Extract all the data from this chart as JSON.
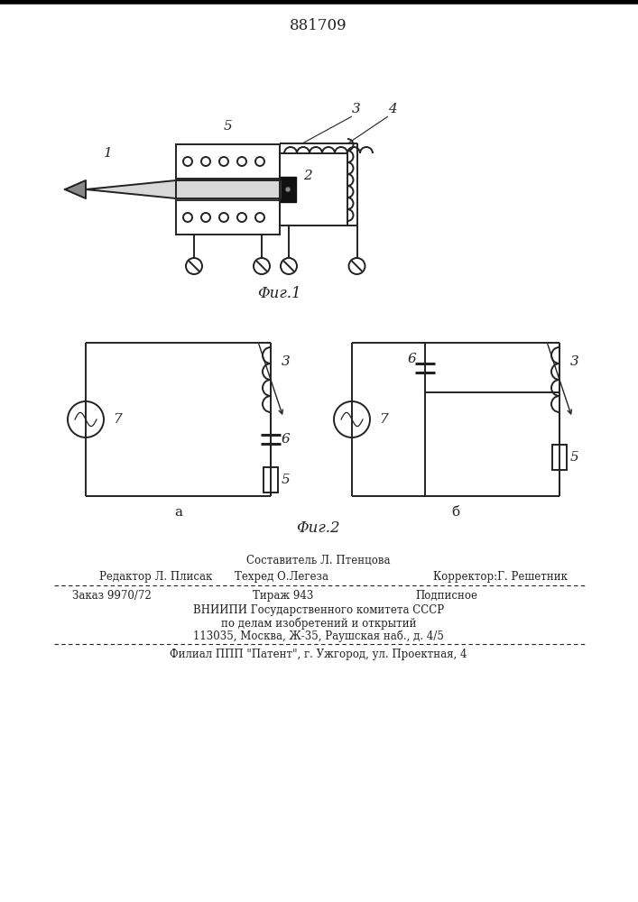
{
  "patent_number": "881709",
  "fig1_caption": "Φиг.1",
  "fig2_caption": "Φиг.2",
  "bg_color": "#ffffff",
  "line_color": "#222222",
  "lw": 1.4
}
